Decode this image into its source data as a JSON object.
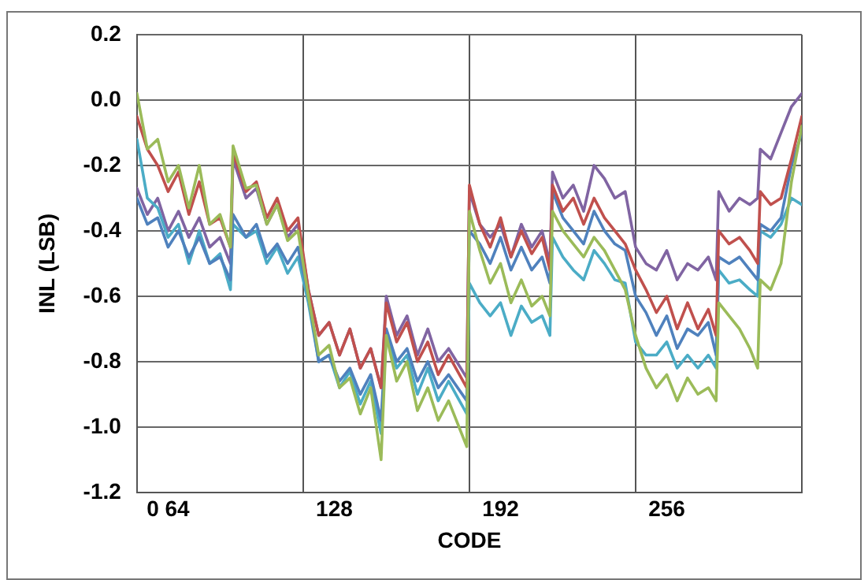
{
  "chart_data": {
    "type": "line",
    "xlabel": "CODE",
    "ylabel": "INL (LSB)",
    "x": [
      52,
      56,
      60,
      64,
      68,
      72,
      76,
      80,
      84,
      88,
      89,
      94,
      98,
      102,
      106,
      110,
      114,
      118,
      122,
      126,
      130,
      134,
      138,
      142,
      146,
      148,
      152,
      156,
      160,
      164,
      168,
      172,
      179,
      180,
      184,
      188,
      192,
      196,
      200,
      204,
      208,
      211,
      212,
      216,
      220,
      224,
      228,
      232,
      236,
      240,
      244,
      248,
      252,
      256,
      260,
      264,
      268,
      272,
      275,
      276,
      280,
      284,
      288,
      291,
      292,
      296,
      300,
      304,
      308
    ],
    "series": [
      {
        "color": "#9bbb59",
        "values": [
          0.02,
          -0.15,
          -0.12,
          -0.25,
          -0.2,
          -0.33,
          -0.2,
          -0.38,
          -0.35,
          -0.45,
          -0.14,
          -0.27,
          -0.26,
          -0.38,
          -0.32,
          -0.43,
          -0.4,
          -0.6,
          -0.78,
          -0.75,
          -0.88,
          -0.85,
          -0.96,
          -0.88,
          -1.1,
          -0.72,
          -0.86,
          -0.8,
          -0.95,
          -0.88,
          -0.98,
          -0.92,
          -1.06,
          -0.34,
          -0.46,
          -0.56,
          -0.5,
          -0.62,
          -0.55,
          -0.63,
          -0.6,
          -0.66,
          -0.34,
          -0.4,
          -0.44,
          -0.48,
          -0.42,
          -0.46,
          -0.52,
          -0.58,
          -0.72,
          -0.82,
          -0.88,
          -0.84,
          -0.92,
          -0.85,
          -0.9,
          -0.88,
          -0.92,
          -0.62,
          -0.66,
          -0.7,
          -0.76,
          -0.82,
          -0.55,
          -0.58,
          -0.5,
          -0.25,
          -0.08
        ]
      },
      {
        "color": "#c0504d",
        "values": [
          -0.05,
          -0.15,
          -0.2,
          -0.28,
          -0.22,
          -0.35,
          -0.25,
          -0.38,
          -0.36,
          -0.45,
          -0.16,
          -0.28,
          -0.25,
          -0.36,
          -0.3,
          -0.4,
          -0.36,
          -0.58,
          -0.72,
          -0.68,
          -0.78,
          -0.7,
          -0.82,
          -0.76,
          -0.88,
          -0.62,
          -0.74,
          -0.68,
          -0.8,
          -0.74,
          -0.84,
          -0.78,
          -0.88,
          -0.26,
          -0.38,
          -0.45,
          -0.36,
          -0.48,
          -0.4,
          -0.47,
          -0.42,
          -0.52,
          -0.26,
          -0.34,
          -0.3,
          -0.38,
          -0.3,
          -0.36,
          -0.4,
          -0.44,
          -0.52,
          -0.58,
          -0.65,
          -0.6,
          -0.7,
          -0.62,
          -0.7,
          -0.64,
          -0.72,
          -0.4,
          -0.44,
          -0.42,
          -0.46,
          -0.5,
          -0.28,
          -0.32,
          -0.3,
          -0.18,
          -0.05
        ]
      },
      {
        "color": "#4f81bd",
        "values": [
          -0.3,
          -0.38,
          -0.36,
          -0.45,
          -0.4,
          -0.48,
          -0.42,
          -0.5,
          -0.48,
          -0.55,
          -0.35,
          -0.42,
          -0.38,
          -0.48,
          -0.44,
          -0.5,
          -0.45,
          -0.6,
          -0.8,
          -0.78,
          -0.86,
          -0.82,
          -0.9,
          -0.84,
          -0.98,
          -0.7,
          -0.8,
          -0.76,
          -0.86,
          -0.8,
          -0.88,
          -0.84,
          -0.92,
          -0.4,
          -0.44,
          -0.5,
          -0.42,
          -0.52,
          -0.45,
          -0.52,
          -0.48,
          -0.56,
          -0.28,
          -0.36,
          -0.4,
          -0.44,
          -0.34,
          -0.4,
          -0.44,
          -0.46,
          -0.6,
          -0.65,
          -0.72,
          -0.66,
          -0.76,
          -0.7,
          -0.72,
          -0.68,
          -0.78,
          -0.48,
          -0.5,
          -0.48,
          -0.52,
          -0.55,
          -0.38,
          -0.4,
          -0.36,
          -0.2,
          -0.1
        ]
      },
      {
        "color": "#4bacc6",
        "values": [
          -0.12,
          -0.3,
          -0.33,
          -0.42,
          -0.38,
          -0.5,
          -0.4,
          -0.5,
          -0.47,
          -0.58,
          -0.38,
          -0.42,
          -0.4,
          -0.5,
          -0.45,
          -0.53,
          -0.48,
          -0.62,
          -0.8,
          -0.78,
          -0.88,
          -0.83,
          -0.93,
          -0.86,
          -1.02,
          -0.72,
          -0.82,
          -0.78,
          -0.9,
          -0.82,
          -0.92,
          -0.86,
          -0.96,
          -0.56,
          -0.62,
          -0.66,
          -0.62,
          -0.72,
          -0.63,
          -0.68,
          -0.66,
          -0.72,
          -0.42,
          -0.48,
          -0.52,
          -0.55,
          -0.46,
          -0.5,
          -0.55,
          -0.56,
          -0.74,
          -0.78,
          -0.78,
          -0.74,
          -0.82,
          -0.78,
          -0.82,
          -0.78,
          -0.82,
          -0.52,
          -0.56,
          -0.55,
          -0.58,
          -0.6,
          -0.4,
          -0.42,
          -0.38,
          -0.3,
          -0.32
        ]
      },
      {
        "color": "#8064a2",
        "values": [
          -0.27,
          -0.35,
          -0.3,
          -0.4,
          -0.34,
          -0.42,
          -0.36,
          -0.45,
          -0.42,
          -0.5,
          -0.18,
          -0.3,
          -0.27,
          -0.38,
          -0.32,
          -0.42,
          -0.38,
          -0.58,
          -0.72,
          -0.68,
          -0.78,
          -0.7,
          -0.82,
          -0.76,
          -0.88,
          -0.6,
          -0.72,
          -0.66,
          -0.78,
          -0.7,
          -0.8,
          -0.76,
          -0.85,
          -0.28,
          -0.38,
          -0.42,
          -0.38,
          -0.48,
          -0.38,
          -0.45,
          -0.4,
          -0.5,
          -0.22,
          -0.3,
          -0.26,
          -0.34,
          -0.2,
          -0.24,
          -0.3,
          -0.28,
          -0.45,
          -0.5,
          -0.52,
          -0.46,
          -0.55,
          -0.5,
          -0.52,
          -0.48,
          -0.55,
          -0.28,
          -0.34,
          -0.3,
          -0.32,
          -0.3,
          -0.15,
          -0.18,
          -0.1,
          -0.02,
          0.02
        ]
      }
    ],
    "xlim": [
      52,
      308
    ],
    "xticks": [
      {
        "value": 52,
        "label": null
      },
      {
        "value": 64,
        "label": "0 64"
      },
      {
        "value": 116,
        "label": null
      },
      128,
      {
        "value": 180,
        "label": null
      },
      192,
      {
        "value": 244,
        "label": null
      },
      256,
      {
        "value": 308,
        "label": null
      }
    ],
    "ylim": [
      -1.2,
      0.2
    ],
    "yticks": [
      0.2,
      {
        "value": 0,
        "label": "0.0"
      },
      -0.2,
      -0.4,
      -0.6,
      -0.8,
      {
        "value": -1,
        "label": "-1.0"
      },
      -1.2
    ],
    "grid": true,
    "legend": false,
    "marker": "none",
    "line_style": "solid"
  }
}
